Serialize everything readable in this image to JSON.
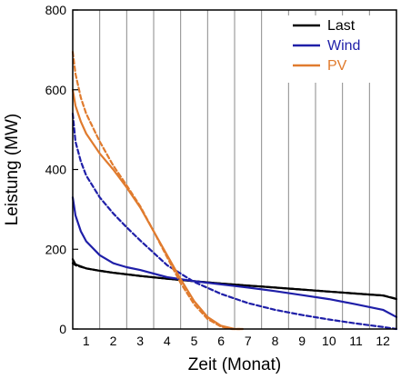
{
  "chart_data": {
    "type": "line",
    "xlabel": "Zeit (Monat)",
    "ylabel": "Leistung (MW)",
    "xlim": [
      0.5,
      12.5
    ],
    "ylim": [
      0,
      800
    ],
    "x_ticks": [
      1,
      2,
      3,
      4,
      5,
      6,
      7,
      8,
      9,
      10,
      11,
      12
    ],
    "y_ticks": [
      0,
      200,
      400,
      600,
      800
    ],
    "grid": "vertical month boundaries",
    "legend": {
      "placement": "top-right",
      "entries": [
        "Last",
        "Wind",
        "PV"
      ]
    },
    "series": [
      {
        "name": "Last",
        "color": "#000000",
        "style": "solid",
        "x": [
          0.5,
          0.6,
          1.0,
          1.5,
          2,
          3,
          4,
          5,
          6,
          7,
          8,
          9,
          10,
          11,
          12,
          12.5
        ],
        "values": [
          175,
          162,
          152,
          146,
          141,
          133,
          126,
          120,
          114,
          109,
          104,
          99,
          94,
          89,
          84,
          75
        ]
      },
      {
        "name": "Last",
        "color": "#000000",
        "style": "dashed",
        "x": [
          0.5,
          0.6,
          1.0,
          1.5,
          2,
          3,
          4,
          5,
          6,
          7,
          8,
          9,
          10,
          11,
          12,
          12.5
        ],
        "values": [
          165,
          160,
          152,
          146,
          141,
          133,
          126,
          120,
          114,
          109,
          104,
          99,
          94,
          89,
          84,
          76
        ]
      },
      {
        "name": "Wind",
        "color": "#1f1fa8",
        "style": "solid",
        "x": [
          0.5,
          0.6,
          0.8,
          1.0,
          1.5,
          2,
          2.5,
          3,
          4,
          5,
          6,
          7,
          8,
          9,
          10,
          11,
          12,
          12.5
        ],
        "values": [
          330,
          285,
          245,
          220,
          185,
          165,
          155,
          148,
          130,
          120,
          112,
          104,
          95,
          85,
          75,
          62,
          48,
          30
        ]
      },
      {
        "name": "Wind",
        "color": "#1f1fa8",
        "style": "dashed",
        "x": [
          0.5,
          0.6,
          0.8,
          1.0,
          1.5,
          2,
          2.5,
          3,
          4,
          5,
          6,
          7,
          8,
          9,
          10,
          11,
          12,
          12.5
        ],
        "values": [
          540,
          470,
          420,
          385,
          330,
          290,
          255,
          222,
          160,
          118,
          88,
          65,
          48,
          35,
          24,
          14,
          5,
          0
        ]
      },
      {
        "name": "PV",
        "color": "#e07b2e",
        "style": "solid",
        "x": [
          0.5,
          0.6,
          0.8,
          1.0,
          1.5,
          2,
          2.5,
          3,
          3.5,
          4,
          4.5,
          5,
          5.5,
          6,
          6.5,
          6.8
        ],
        "values": [
          600,
          560,
          520,
          490,
          440,
          400,
          355,
          305,
          245,
          185,
          125,
          70,
          30,
          8,
          0,
          0
        ]
      },
      {
        "name": "PV",
        "color": "#e07b2e",
        "style": "dashed",
        "x": [
          0.5,
          0.6,
          0.8,
          1.0,
          1.5,
          2,
          2.5,
          3,
          3.5,
          4,
          4.5,
          5,
          5.5,
          6,
          6.4,
          6.7
        ],
        "values": [
          695,
          640,
          580,
          540,
          470,
          410,
          360,
          308,
          245,
          180,
          115,
          62,
          25,
          6,
          0,
          0
        ]
      }
    ]
  }
}
